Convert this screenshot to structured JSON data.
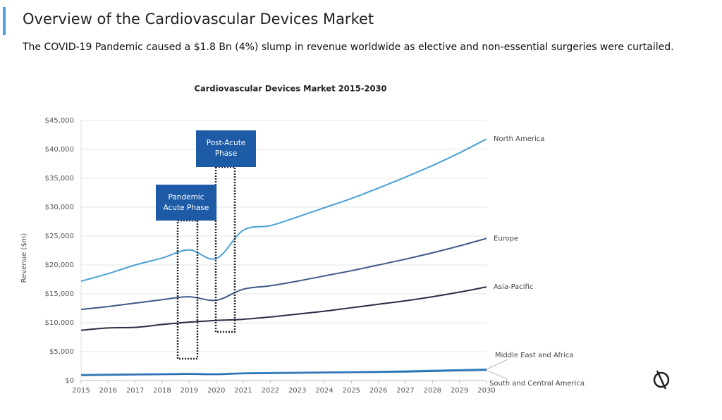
{
  "header": {
    "title": "Overview of the Cardiovascular Devices Market",
    "subtitle": "The COVID-19 Pandemic caused a $1.8 Bn (4%) slump in revenue worldwide as elective and non-essential surgeries were curtailed."
  },
  "chart_data": {
    "type": "line",
    "title": "Cardiovascular Devices Market 2015-2030",
    "y_label": "Revenue ($m)",
    "x": [
      2015,
      2016,
      2017,
      2018,
      2019,
      2020,
      2021,
      2022,
      2023,
      2024,
      2025,
      2026,
      2027,
      2028,
      2029,
      2030
    ],
    "xlim": [
      2015,
      2030
    ],
    "xticks": [
      2015,
      2016,
      2017,
      2018,
      2019,
      2020,
      2021,
      2022,
      2023,
      2024,
      2025,
      2026,
      2027,
      2028,
      2029,
      2030
    ],
    "ylim": [
      0,
      45000
    ],
    "yticks": [
      {
        "value": 0,
        "label": "$0"
      },
      {
        "value": 5000,
        "label": "$5,000"
      },
      {
        "value": 10000,
        "label": "$10,000"
      },
      {
        "value": 15000,
        "label": "$15,000"
      },
      {
        "value": 20000,
        "label": "$20,000"
      },
      {
        "value": 25000,
        "label": "$25,000"
      },
      {
        "value": 30000,
        "label": "$30,000"
      },
      {
        "value": 35000,
        "label": "$35,000"
      },
      {
        "value": 40000,
        "label": "$40,000"
      },
      {
        "value": 45000,
        "label": "$45,000"
      }
    ],
    "grid": true,
    "series": [
      {
        "name": "North America",
        "color": "#4a9fd4",
        "values": [
          17200,
          18500,
          20000,
          21200,
          22600,
          21100,
          26000,
          26800,
          28300,
          29900,
          31500,
          33300,
          35200,
          37200,
          39400,
          41800
        ]
      },
      {
        "name": "Europe",
        "color": "#3d5a8a",
        "values": [
          12300,
          12800,
          13400,
          14000,
          14500,
          13900,
          15800,
          16400,
          17200,
          18100,
          19000,
          20000,
          21000,
          22100,
          23300,
          24600
        ]
      },
      {
        "name": "Asia-Pacific",
        "color": "#2b2d45",
        "values": [
          8700,
          9100,
          9200,
          9700,
          10100,
          10400,
          10600,
          11000,
          11500,
          12000,
          12600,
          13200,
          13800,
          14500,
          15300,
          16200
        ]
      },
      {
        "name": "Middle East and Africa",
        "color": "#3a8fcc",
        "values": [
          1000,
          1050,
          1100,
          1150,
          1200,
          1150,
          1300,
          1350,
          1400,
          1450,
          1500,
          1550,
          1650,
          1750,
          1850,
          1950
        ]
      },
      {
        "name": "South and Central America",
        "color": "#2f6fb0",
        "values": [
          900,
          950,
          1000,
          1050,
          1100,
          1050,
          1200,
          1250,
          1300,
          1350,
          1400,
          1450,
          1500,
          1600,
          1700,
          1800
        ]
      }
    ],
    "annotations": [
      "Pandemic Acute Phase",
      "Post-Acute Phase"
    ]
  }
}
